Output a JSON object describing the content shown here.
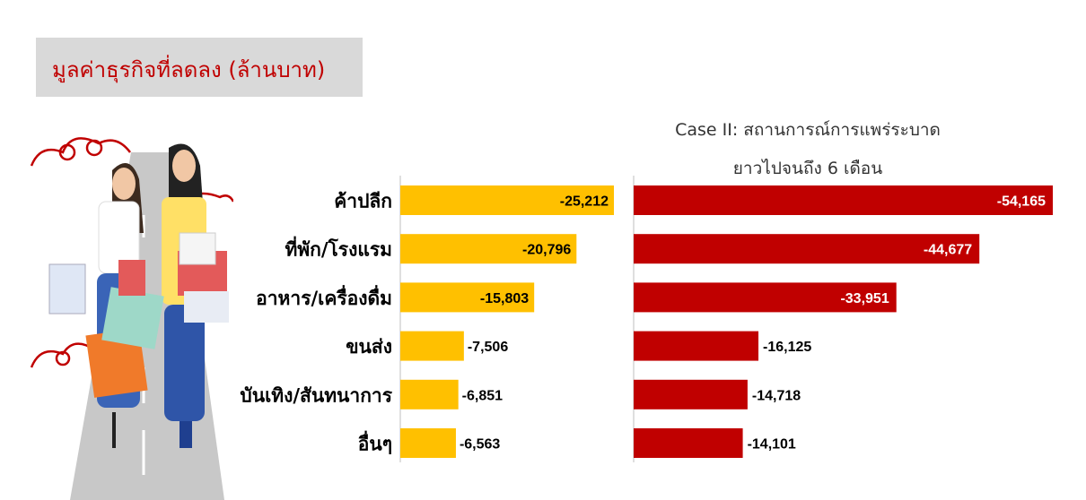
{
  "title": "มูลค่าธุรกิจที่ลดลง (ล้านบาท)",
  "case_title_line1": "Case II: สถานการณ์การแพร่ระบาด",
  "case_title_line2": "ยาวไปจนถึง 6 เดือน",
  "colors": {
    "series1": "#ffc000",
    "series2": "#c00000",
    "title_bg": "#d9d9d9",
    "title_text": "#c00000"
  },
  "chart_data": {
    "type": "bar",
    "orientation": "horizontal",
    "title": "มูลค่าธุรกิจที่ลดลง (ล้านบาท)",
    "categories": [
      "ค้าปลีก",
      "ที่พัก/โรงแรม",
      "อาหาร/เครื่องดื่ม",
      "ขนส่ง",
      "บันเทิง/สันทนาการ",
      "อื่นๆ"
    ],
    "series": [
      {
        "values": [
          -25212,
          -20796,
          -15803,
          -7506,
          -6851,
          -6563
        ],
        "labels": [
          "-25,212",
          "-20,796",
          "-15,803",
          "-7,506",
          "-6,851",
          "-6,563"
        ]
      },
      {
        "name": "Case II: สถานการณ์การแพร่ระบาด ยาวไปจนถึง 6 เดือน",
        "values": [
          -54165,
          -44677,
          -33951,
          -16125,
          -14718,
          -14101
        ],
        "labels": [
          "-54,165",
          "-44,677",
          "-33,951",
          "-16,125",
          "-14,718",
          "-14,101"
        ]
      }
    ]
  }
}
